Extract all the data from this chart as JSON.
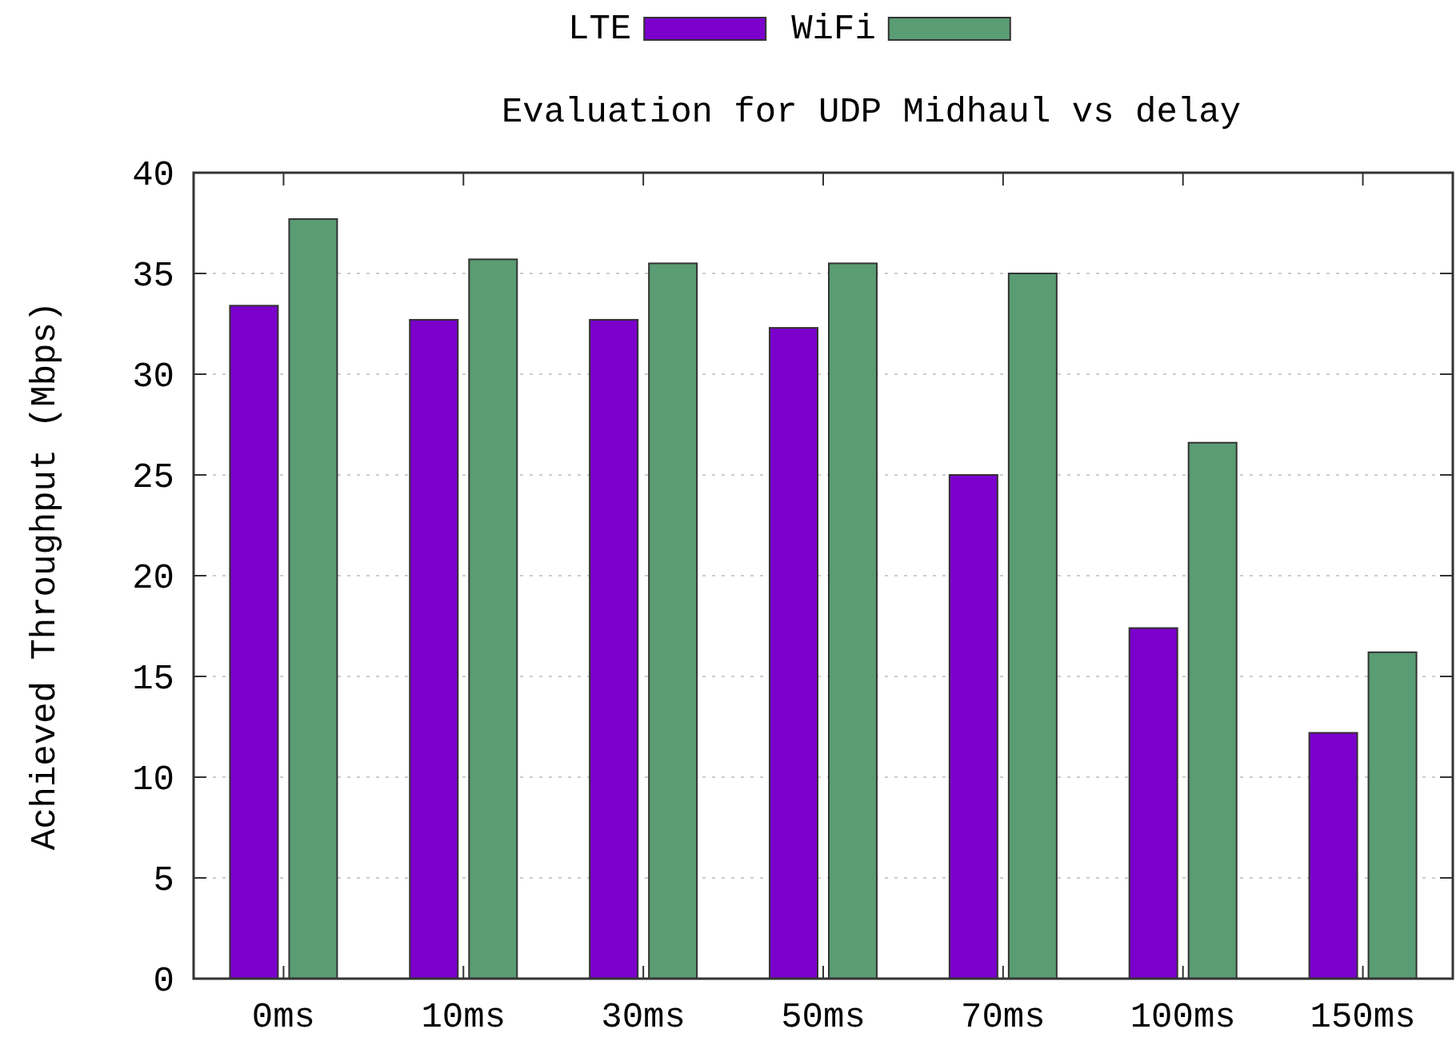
{
  "chart_data": {
    "type": "bar",
    "title": "Evaluation for UDP Midhaul vs delay",
    "ylabel": "Achieved Throughput (Mbps)",
    "categories": [
      "0ms",
      "10ms",
      "30ms",
      "50ms",
      "70ms",
      "100ms",
      "150ms"
    ],
    "series": [
      {
        "name": "LTE",
        "color": "#7b00cc",
        "values": [
          33.4,
          32.7,
          32.7,
          32.3,
          25.0,
          17.4,
          12.2
        ]
      },
      {
        "name": "WiFi",
        "color": "#5a9c73",
        "values": [
          37.7,
          35.7,
          35.5,
          35.5,
          35.0,
          26.6,
          16.2
        ]
      }
    ],
    "ylim": [
      0,
      40
    ],
    "yticks": [
      0,
      5,
      10,
      15,
      20,
      25,
      30,
      35,
      40
    ],
    "grid": "y",
    "legend": "top"
  }
}
